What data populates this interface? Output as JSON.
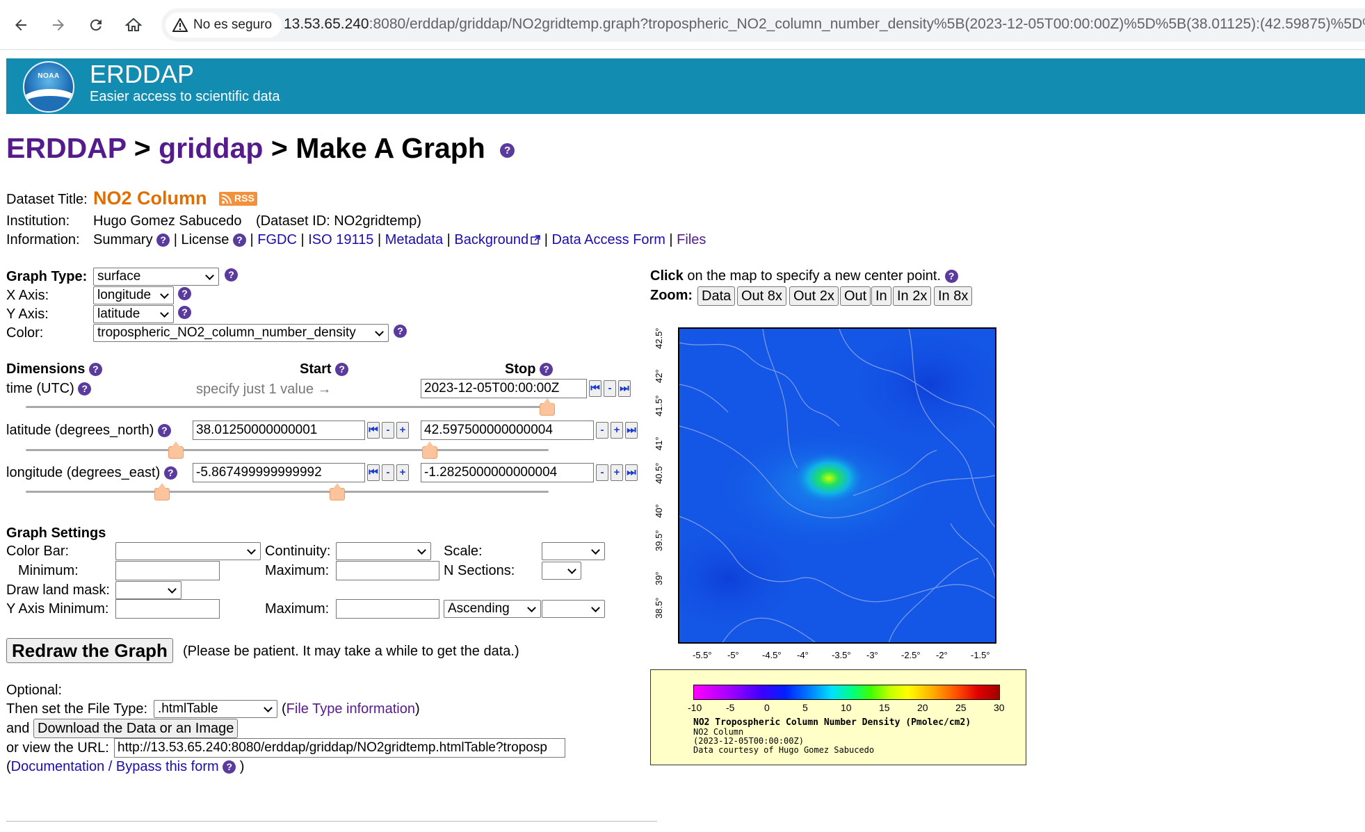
{
  "browser": {
    "security_label": "No es seguro",
    "url_host": "13.53.65.240",
    "url_rest": ":8080/erddap/griddap/NO2gridtemp.graph?tropospheric_NO2_column_number_density%5B(2023-12-05T00:00:00Z)%5D%5B(38.01125):(42.59875)%5D%5..."
  },
  "header": {
    "name": "ERDDAP",
    "tagline": "Easier access to scientific data",
    "logo_text": "NOAA"
  },
  "breadcrumb": {
    "root": "ERDDAP",
    "sep": " > ",
    "section": "griddap",
    "page": "Make A Graph"
  },
  "dataset": {
    "title_label": "Dataset Title:",
    "title": "NO2 Column",
    "rss": "RSS",
    "institution_label": "Institution:",
    "institution": "Hugo Gomez Sabucedo",
    "dataset_id": "(Dataset ID: NO2gridtemp)",
    "information_label": "Information:",
    "links": {
      "summary": "Summary",
      "license": "License",
      "fgdc": "FGDC",
      "iso": "ISO 19115",
      "metadata": "Metadata",
      "background": "Background",
      "data_access": "Data Access Form",
      "files": "Files"
    }
  },
  "graph": {
    "type_label": "Graph Type:",
    "type_value": "surface",
    "x_label": "X Axis:",
    "x_value": "longitude",
    "y_label": "Y Axis:",
    "y_value": "latitude",
    "color_label": "Color:",
    "color_value": "tropospheric_NO2_column_number_density"
  },
  "dimensions": {
    "header": "Dimensions",
    "start_header": "Start",
    "stop_header": "Stop",
    "time": {
      "label": "time (UTC)",
      "hint": "specify just 1 value →",
      "stop": "2023-12-05T00:00:00Z"
    },
    "latitude": {
      "label": "latitude (degrees_north)",
      "start": "38.01250000000001",
      "stop": "42.597500000000004"
    },
    "longitude": {
      "label": "longitude (degrees_east)",
      "start": "-5.867499999999992",
      "stop": "-1.2825000000000004"
    }
  },
  "settings": {
    "header": "Graph Settings",
    "color_bar": "Color Bar:",
    "continuity": "Continuity:",
    "scale": "Scale:",
    "minimum": "Minimum:",
    "maximum": "Maximum:",
    "n_sections": "N Sections:",
    "land_mask": "Draw land mask:",
    "y_min": "Y Axis Minimum:",
    "y_max": "Maximum:",
    "order": "Ascending"
  },
  "actions": {
    "redraw": "Redraw the Graph",
    "patience": "(Please be patient. It may take a while to get the data.)",
    "optional": "Optional:",
    "file_type_label": "Then set the File Type:",
    "file_type": ".htmlTable",
    "file_type_info": "File Type information",
    "and": "and",
    "download": "Download the Data or an Image",
    "view_url_label": "or view the URL:",
    "view_url": "http://13.53.65.240:8080/erddap/griddap/NO2gridtemp.htmlTable?troposp",
    "documentation": "Documentation / Bypass this form"
  },
  "map_controls": {
    "click_bold": "Click",
    "click_rest": " on the map to specify a new center point.",
    "zoom_label": "Zoom:",
    "zoom_buttons": [
      "Data",
      "Out 8x",
      "Out 2x",
      "Out",
      "In",
      "In 2x",
      "In 8x"
    ]
  },
  "map": {
    "lat_ticks": [
      "42.5°",
      "42°",
      "41.5°",
      "41°",
      "40.5°",
      "40°",
      "39.5°",
      "39°",
      "38.5°"
    ],
    "lon_ticks": [
      "-5.5°",
      "-5°",
      "-4.5°",
      "-4°",
      "-3.5°",
      "-3°",
      "-2.5°",
      "-2°",
      "-1.5°"
    ]
  },
  "legend": {
    "ticks": [
      "-10",
      "-5",
      "0",
      "5",
      "10",
      "15",
      "20",
      "25",
      "30"
    ],
    "title": "NO2 Tropospheric Column Number Density (Pmolec/cm2)",
    "line2": "NO2 Column",
    "line3": "(2023-12-05T00:00:00Z)",
    "line4": "Data courtesy of Hugo Gomez Sabucedo"
  }
}
